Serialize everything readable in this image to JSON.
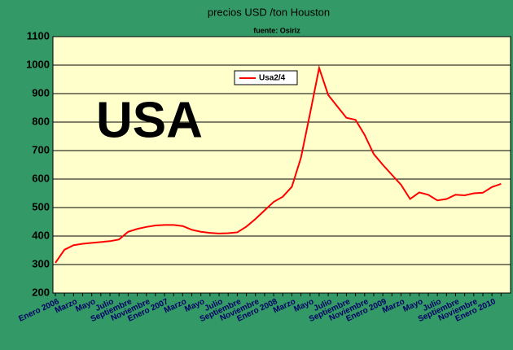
{
  "chart_data": {
    "type": "line",
    "title": "precios USD /ton Houston",
    "subtitle": "fuente: Osiriz",
    "annotation": "USA",
    "categories": [
      "Enero 2006",
      null,
      "Marzo",
      null,
      "Mayo",
      null,
      "Julio",
      null,
      "Septiembre",
      null,
      "Noviembre",
      null,
      "Enero 2007",
      null,
      "Marzo",
      null,
      "Mayo",
      null,
      "Julio",
      null,
      "Septiembre",
      null,
      "Noviembre",
      null,
      "Enero 2008",
      null,
      "Marzo",
      null,
      "Mayo",
      null,
      "Julio",
      null,
      "Septiembre",
      null,
      "Noviembre",
      null,
      "Enero 2009",
      null,
      "Marzo",
      null,
      "Mayo",
      null,
      "Julio",
      null,
      "Septiembre",
      null,
      "Noviembre",
      null,
      "Enero 2010",
      null
    ],
    "series": [
      {
        "name": "Usa2/4",
        "color": "#ff0000",
        "values": [
          306,
          352,
          368,
          373,
          376,
          379,
          382,
          388,
          415,
          425,
          432,
          437,
          439,
          439,
          435,
          422,
          415,
          411,
          409,
          410,
          413,
          433,
          460,
          490,
          520,
          538,
          573,
          675,
          830,
          990,
          895,
          855,
          815,
          808,
          755,
          688,
          650,
          615,
          580,
          530,
          553,
          545,
          525,
          530,
          545,
          543,
          550,
          552,
          572,
          583
        ]
      }
    ],
    "ylim": [
      200,
      1100
    ],
    "yticks": [
      200,
      300,
      400,
      500,
      600,
      700,
      800,
      900,
      1000,
      1100
    ],
    "grid": true
  }
}
